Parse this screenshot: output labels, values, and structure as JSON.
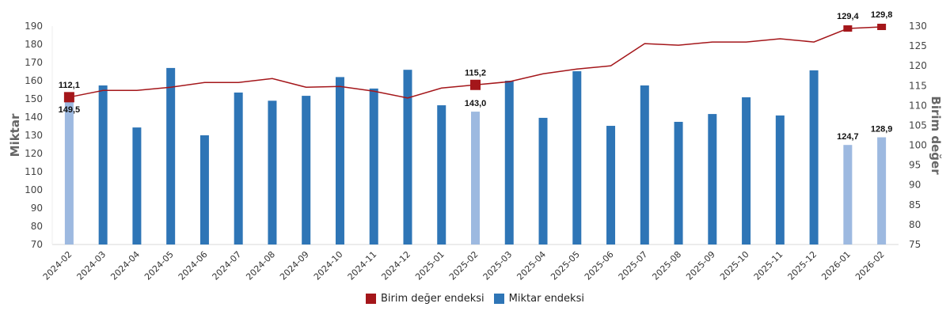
{
  "chart_data": {
    "type": "bar",
    "title": "",
    "categories": [
      "2024-02",
      "2024-03",
      "2024-04",
      "2024-05",
      "2024-06",
      "2024-07",
      "2024-08",
      "2024-09",
      "2024-10",
      "2024-11",
      "2024-12",
      "2025-01",
      "2025-02",
      "2025-03",
      "2025-04",
      "2025-05",
      "2025-06",
      "2025-07",
      "2025-08",
      "2025-09",
      "2025-10",
      "2025-11",
      "2025-12",
      "2026-01",
      "2026-02"
    ],
    "series": [
      {
        "name": "Miktar endeksi",
        "type": "bar",
        "axis": "left",
        "color": "#2e75b6",
        "highlight_color": "#9db9e0",
        "highlighted_indices": [
          0,
          12,
          23,
          24
        ],
        "values": [
          149.5,
          157.4,
          134.3,
          167.0,
          130.0,
          153.5,
          149.0,
          151.7,
          162.0,
          155.7,
          166.0,
          146.5,
          143.0,
          160.0,
          139.6,
          165.2,
          135.2,
          157.4,
          137.4,
          141.7,
          150.9,
          140.9,
          165.7,
          124.7,
          128.9
        ]
      },
      {
        "name": "Birim değer endeksi",
        "type": "line",
        "axis": "right",
        "color": "#a4161a",
        "marker_indices": [
          0,
          12,
          23,
          24
        ],
        "values": [
          112.1,
          113.8,
          113.8,
          114.6,
          115.8,
          115.8,
          116.8,
          114.6,
          114.8,
          113.6,
          111.9,
          114.4,
          115.2,
          116.0,
          118.0,
          119.2,
          120.0,
          125.6,
          125.2,
          126.0,
          126.0,
          126.8,
          126.0,
          129.4,
          129.8
        ]
      }
    ],
    "data_labels": [
      {
        "series": "Birim değer endeksi",
        "index": 0,
        "text": "112,1"
      },
      {
        "series": "Miktar endeksi",
        "index": 0,
        "text": "149,5"
      },
      {
        "series": "Birim değer endeksi",
        "index": 12,
        "text": "115,2"
      },
      {
        "series": "Miktar endeksi",
        "index": 12,
        "text": "143,0"
      },
      {
        "series": "Birim değer endeksi",
        "index": 23,
        "text": "129,4"
      },
      {
        "series": "Birim değer endeksi",
        "index": 24,
        "text": "129,8"
      },
      {
        "series": "Miktar endeksi",
        "index": 23,
        "text": "124,7"
      },
      {
        "series": "Miktar endeksi",
        "index": 24,
        "text": "128,9"
      }
    ],
    "ylabel": "Miktar",
    "ylabel_right": "Birim değer",
    "ylim": [
      70,
      190
    ],
    "ylim_right": [
      75,
      130
    ],
    "yticks": [
      70,
      80,
      90,
      100,
      110,
      120,
      130,
      140,
      150,
      160,
      170,
      180,
      190
    ],
    "yticks_right": [
      75,
      80,
      85,
      90,
      95,
      100,
      105,
      110,
      115,
      120,
      125,
      130
    ],
    "grid": false,
    "legend_position": "bottom"
  },
  "legend": {
    "items": [
      {
        "label": "Birim değer endeksi",
        "color": "#a4161a"
      },
      {
        "label": "Miktar endeksi",
        "color": "#2e75b6"
      }
    ]
  }
}
